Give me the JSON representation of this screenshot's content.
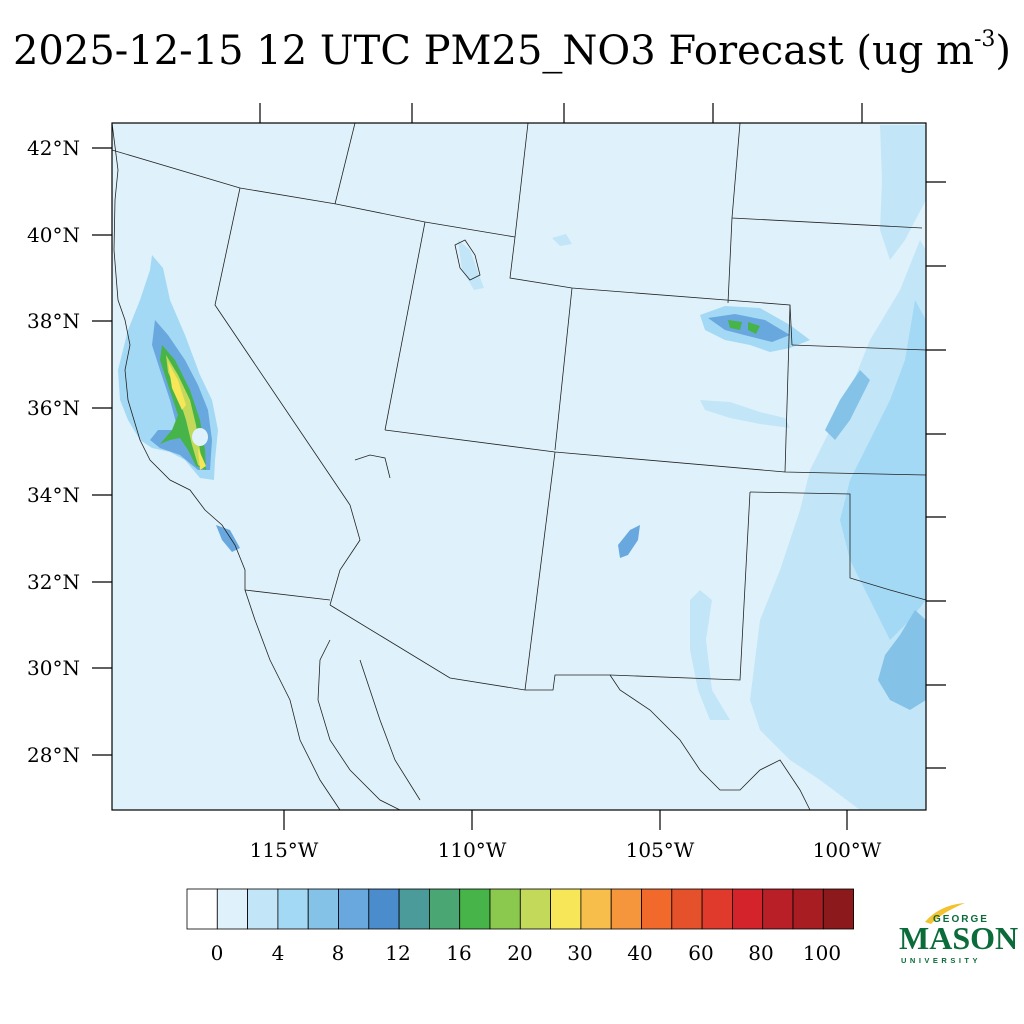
{
  "title": {
    "main": "2025-12-15 12 UTC PM25_NO3 Forecast (ug m",
    "sup": "-3",
    "close": ")"
  },
  "map": {
    "lat_labels": [
      "42°N",
      "40°N",
      "38°N",
      "36°N",
      "34°N",
      "32°N",
      "30°N",
      "28°N"
    ],
    "lon_labels": [
      "115°W",
      "110°W",
      "105°W",
      "100°W"
    ],
    "background_color": "#dff2fb"
  },
  "colorbar": {
    "colors": [
      "#ffffff",
      "#dff2fb",
      "#c2e6f7",
      "#a3d9f5",
      "#85c2e8",
      "#68a8de",
      "#4a8ccc",
      "#4b9b9b",
      "#4aa773",
      "#46b448",
      "#8bc94e",
      "#c3d95a",
      "#f6e658",
      "#f7be4b",
      "#f5963c",
      "#f26a2b",
      "#e5512b",
      "#df3a2b",
      "#d4232a",
      "#b81f26",
      "#a71d22",
      "#8c1a1c"
    ],
    "labels": [
      "0",
      "4",
      "8",
      "12",
      "16",
      "20",
      "30",
      "40",
      "60",
      "80",
      "100"
    ]
  },
  "logo": {
    "george": "GEORGE",
    "mason": "MASON",
    "university": "UNIVERSITY",
    "color": "#0b6b3a"
  }
}
